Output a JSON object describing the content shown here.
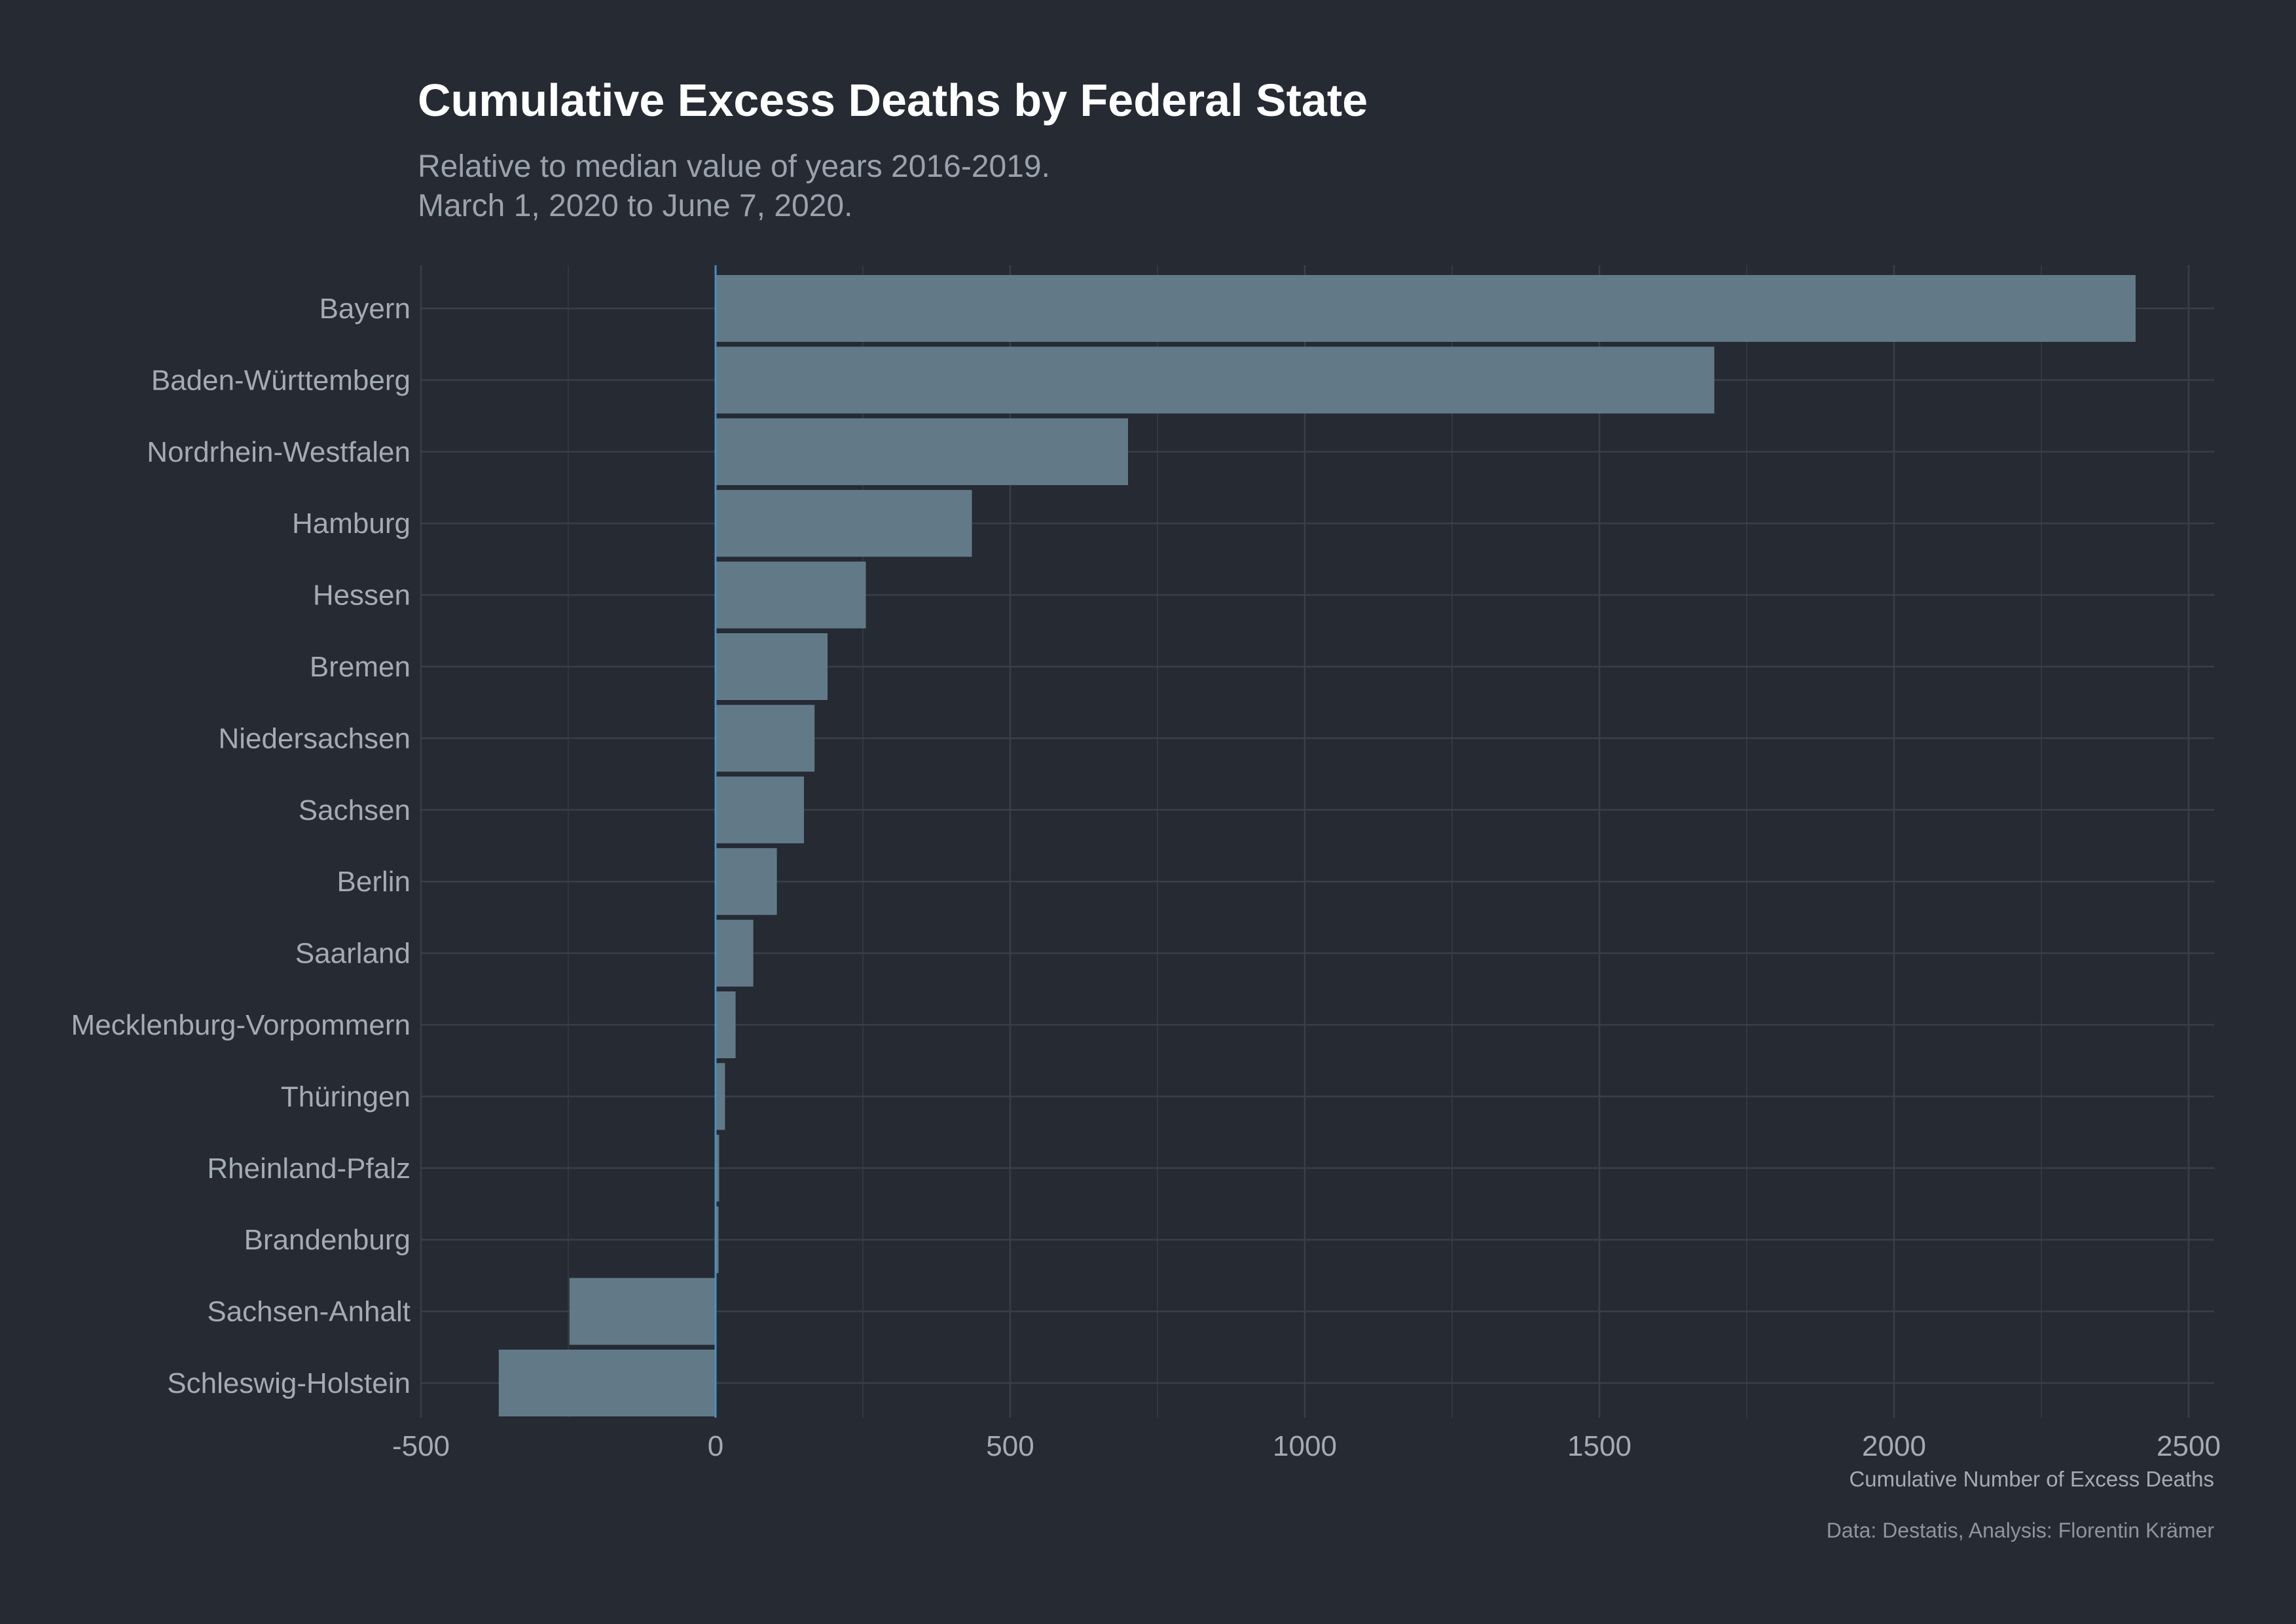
{
  "chart_data": {
    "type": "bar",
    "orientation": "horizontal",
    "title": "Cumulative Excess Deaths by Federal State",
    "subtitle": [
      "Relative to median value of years 2016-2019.",
      "March 1, 2020 to June 7, 2020."
    ],
    "xlabel": "Cumulative Number of Excess Deaths",
    "ylabel": "",
    "caption": "Data: Destatis, Analysis: Florentin Krämer",
    "xlim": [
      -500,
      2550
    ],
    "x_ticks": [
      -500,
      0,
      500,
      1000,
      1500,
      2000,
      2500
    ],
    "x_tick_labels": [
      "-500",
      "0",
      "500",
      "1000",
      "1500",
      "2000",
      "2500"
    ],
    "grid": true,
    "categories": [
      "Bayern",
      "Baden-Württemberg",
      "Nordrhein-Westfalen",
      "Hamburg",
      "Hessen",
      "Bremen",
      "Niedersachsen",
      "Sachsen",
      "Berlin",
      "Saarland",
      "Mecklenburg-Vorpommern",
      "Thüringen",
      "Rheinland-Pfalz",
      "Brandenburg",
      "Sachsen-Anhalt",
      "Schleswig-Holstein"
    ],
    "values": [
      2410,
      1695,
      700,
      435,
      255,
      190,
      168,
      150,
      104,
      64,
      34,
      16,
      6,
      5,
      -248,
      -368
    ],
    "colors": {
      "background": "#252a33",
      "bar": "#627a88",
      "zero_line": "#4b8fc0",
      "grid": "#3a3f47"
    }
  }
}
